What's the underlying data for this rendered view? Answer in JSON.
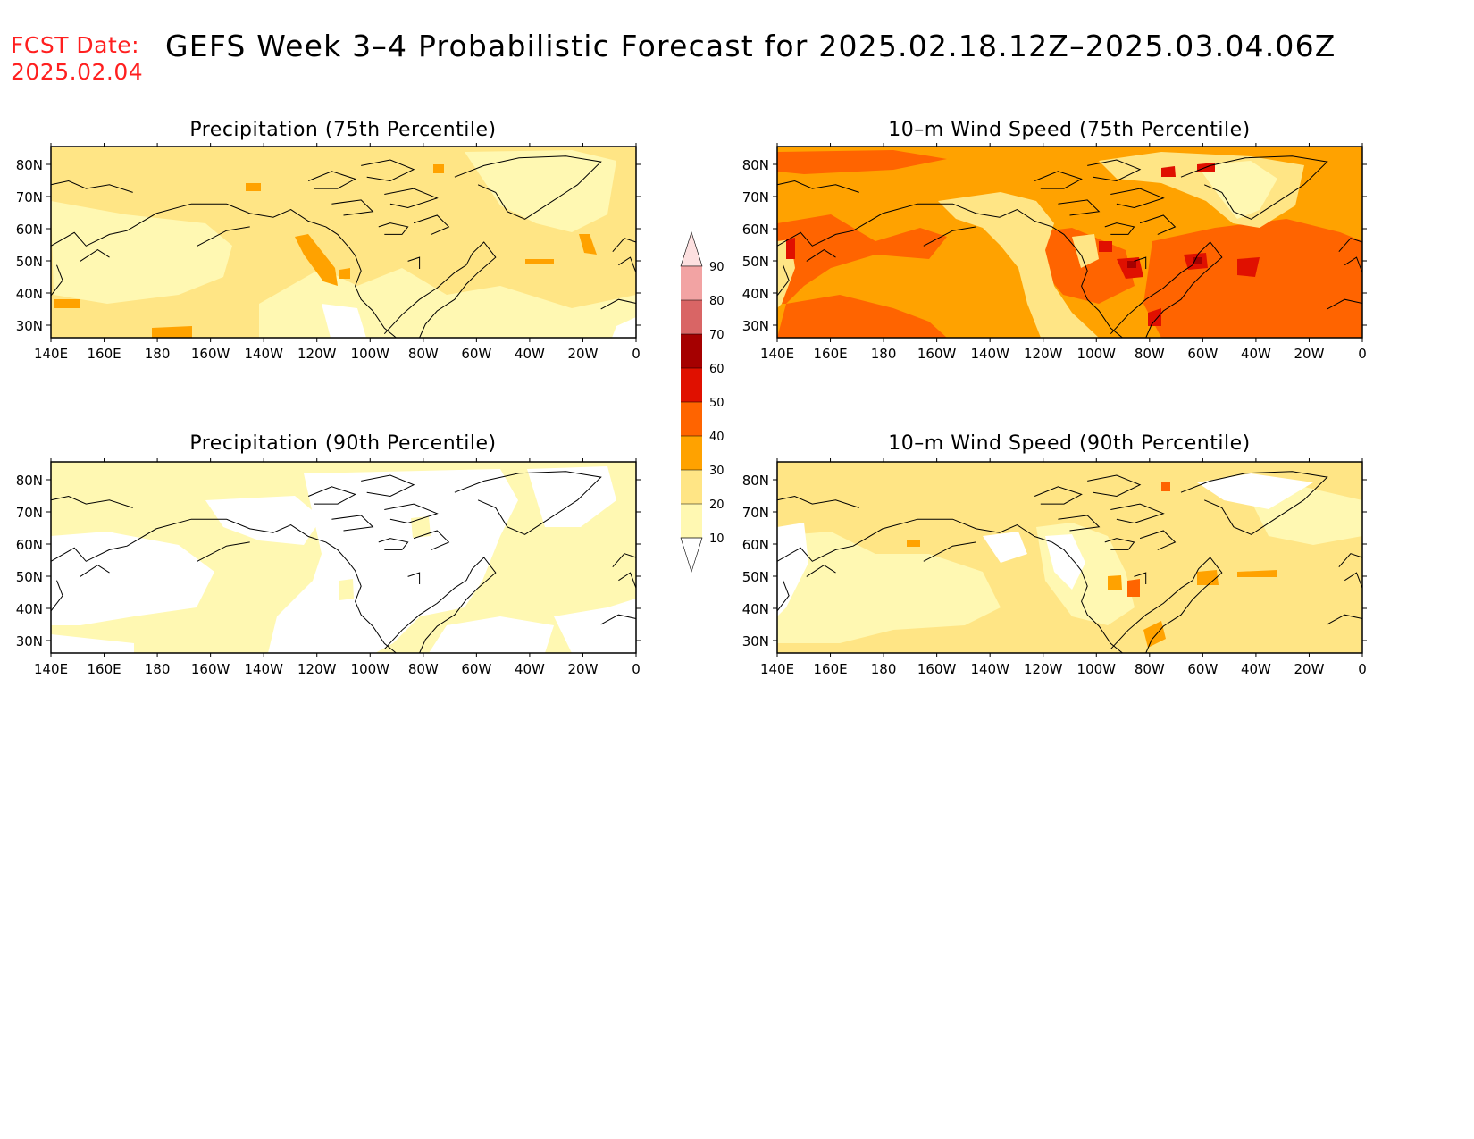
{
  "header": {
    "fcst_label": "FCST Date:",
    "fcst_date": "2025.02.04",
    "title": "GEFS Week 3–4 Probabilistic Forecast for 2025.02.18.12Z–2025.03.04.06Z"
  },
  "colors": {
    "bin_10_20": "#fff8b2",
    "bin_20_30": "#ffe585",
    "bin_30_40": "#ffa200",
    "bin_40_50": "#ff6400",
    "bin_50_60": "#e01000",
    "bin_60_70": "#a50000",
    "bin_70_80": "#d96565",
    "bin_80_90": "#f2a3a3",
    "bin_90_plus": "#fde0e0",
    "coastline": "#000000"
  },
  "colorbar": {
    "levels": [
      "10",
      "20",
      "30",
      "40",
      "50",
      "60",
      "70",
      "80",
      "90"
    ]
  },
  "axes": {
    "x_ticks": [
      "140E",
      "160E",
      "180",
      "160W",
      "140W",
      "120W",
      "100W",
      "80W",
      "60W",
      "40W",
      "20W",
      "0"
    ],
    "y_ticks": [
      "80N",
      "70N",
      "60N",
      "50N",
      "40N",
      "30N"
    ]
  },
  "panels": [
    {
      "id": "precip75",
      "title": "Precipitation (75th Percentile)",
      "background_bin": "bin_20_30"
    },
    {
      "id": "wind75",
      "title": "10–m Wind Speed (75th Percentile)",
      "background_bin": "bin_30_40"
    },
    {
      "id": "precip90",
      "title": "Precipitation (90th Percentile)",
      "background_bin": "bin_10_20"
    },
    {
      "id": "wind90",
      "title": "10–m Wind Speed (90th Percentile)",
      "background_bin": "bin_20_30"
    }
  ]
}
